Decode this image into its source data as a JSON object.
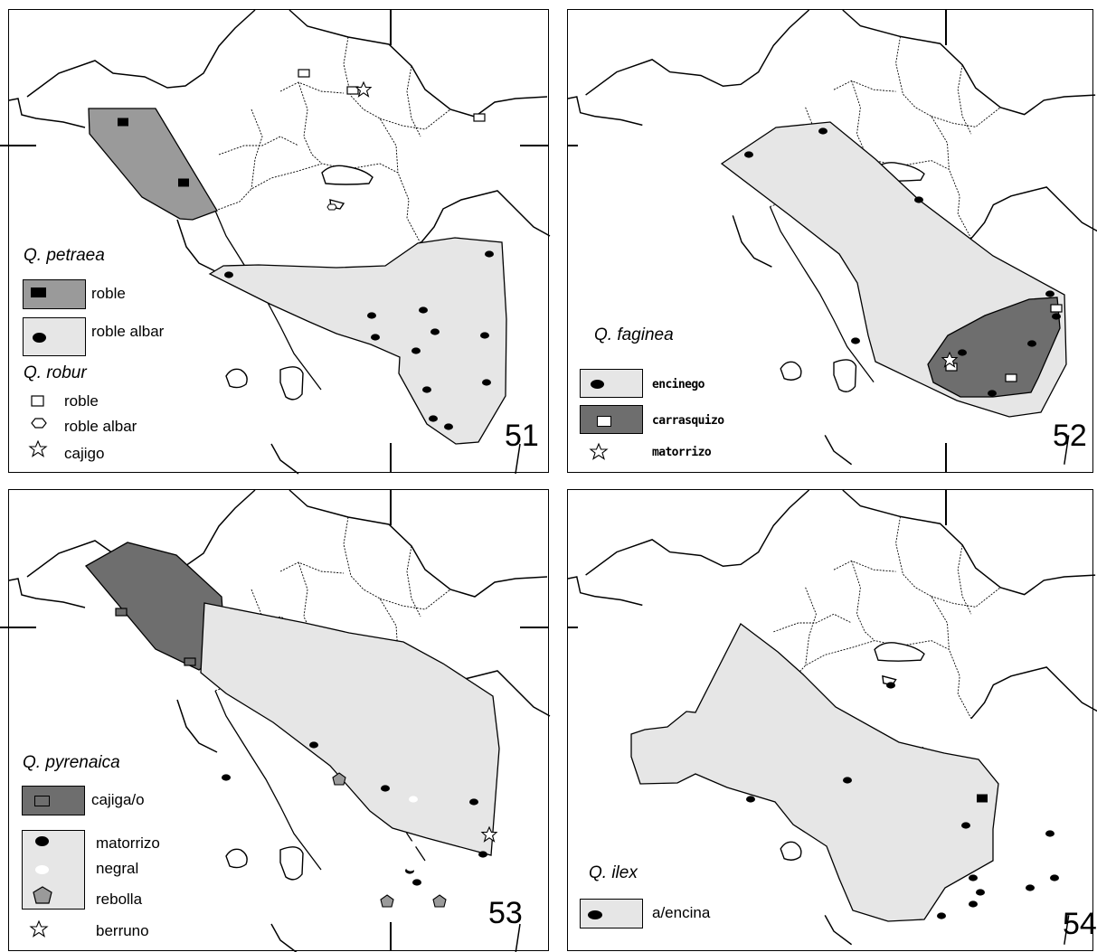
{
  "colors": {
    "range_light": "#e6e6e6",
    "range_mid": "#9a9a9a",
    "range_dark": "#6e6e6e",
    "border": "#000000"
  },
  "maps": [
    {
      "number": "51",
      "legend": [
        {
          "title": "Q. petraea",
          "items": [
            {
              "symbol": "black-rect-on-mid-gray",
              "label": "roble"
            },
            {
              "symbol": "black-dot-on-light-gray",
              "label": "roble albar"
            }
          ]
        },
        {
          "title": "Q. robur",
          "items": [
            {
              "symbol": "open-square-icon",
              "label": "roble"
            },
            {
              "symbol": "open-hexagon-icon",
              "label": "roble albar"
            },
            {
              "symbol": "open-star-icon",
              "label": "cajigo"
            }
          ]
        }
      ]
    },
    {
      "number": "52",
      "legend": [
        {
          "title": "Q. faginea",
          "items": [
            {
              "symbol": "black-dot-on-light-gray",
              "label": "encinego"
            },
            {
              "symbol": "open-square-on-dark-gray",
              "label": "carrasquizo"
            },
            {
              "symbol": "open-star-icon",
              "label": "matorrizo"
            }
          ]
        }
      ]
    },
    {
      "number": "53",
      "legend": [
        {
          "title": "Q. pyrenaica",
          "items": [
            {
              "symbol": "open-square-on-dark-gray",
              "label": "cajiga/o"
            },
            {
              "symbol": "black-dot-on-light-gray",
              "label": "matorrizo"
            },
            {
              "symbol": "white-dot-on-light-gray",
              "label": "negral"
            },
            {
              "symbol": "gray-pentagon-icon",
              "label": "rebolla"
            },
            {
              "symbol": "open-star-icon",
              "label": "berruno"
            }
          ]
        }
      ]
    },
    {
      "number": "54",
      "legend": [
        {
          "title": "Q. ilex",
          "items": [
            {
              "symbol": "black-dot-on-light-gray",
              "label": "a/encina"
            }
          ]
        }
      ]
    }
  ]
}
